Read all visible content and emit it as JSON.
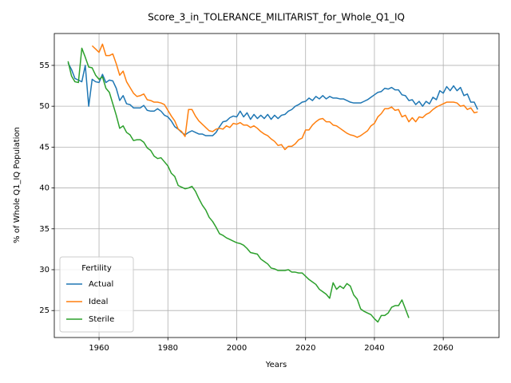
{
  "chart_data": {
    "type": "line",
    "title": "Score_3_in_TOLERANCE_MILITARIST_for_Whole_Q1_IQ",
    "x_label": "Years",
    "y_label": "% of Whole Q1_IQ Population",
    "legend_title": "Fertility",
    "legend_position": "lower left",
    "grid": true,
    "xlim": [
      1947.0,
      2076.2
    ],
    "ylim": [
      21.7,
      58.9
    ],
    "xticks": [
      1960,
      1980,
      2000,
      2020,
      2040,
      2060
    ],
    "yticks": [
      25,
      30,
      35,
      40,
      45,
      50,
      55
    ],
    "x": [
      1951,
      1952,
      1953,
      1954,
      1955,
      1956,
      1957,
      1958,
      1959,
      1960,
      1961,
      1962,
      1963,
      1964,
      1965,
      1966,
      1967,
      1968,
      1969,
      1970,
      1971,
      1972,
      1973,
      1974,
      1975,
      1976,
      1977,
      1978,
      1979,
      1980,
      1981,
      1982,
      1983,
      1984,
      1985,
      1986,
      1987,
      1988,
      1989,
      1990,
      1991,
      1992,
      1993,
      1994,
      1995,
      1996,
      1997,
      1998,
      1999,
      2000,
      2001,
      2002,
      2003,
      2004,
      2005,
      2006,
      2007,
      2008,
      2009,
      2010,
      2011,
      2012,
      2013,
      2014,
      2015,
      2016,
      2017,
      2018,
      2019,
      2020,
      2021,
      2022,
      2023,
      2024,
      2025,
      2026,
      2027,
      2028,
      2029,
      2030,
      2031,
      2032,
      2033,
      2034,
      2035,
      2036,
      2037,
      2038,
      2039,
      2040,
      2041,
      2042,
      2043,
      2044,
      2045,
      2046,
      2047,
      2048,
      2049,
      2050,
      2051,
      2052,
      2053,
      2054,
      2055,
      2056,
      2057,
      2058,
      2059,
      2060,
      2061,
      2062,
      2063,
      2064,
      2065,
      2066,
      2067,
      2068,
      2069,
      2070
    ],
    "series": [
      {
        "name": "Actual",
        "color": "#1f77b4",
        "values": [
          55.3,
          54.5,
          53.4,
          53.2,
          53.0,
          55.0,
          50.0,
          53.3,
          53.0,
          52.9,
          53.9,
          52.9,
          53.2,
          53.1,
          52.2,
          50.7,
          51.3,
          50.3,
          50.2,
          49.8,
          49.8,
          49.8,
          50.1,
          49.5,
          49.4,
          49.4,
          49.7,
          49.4,
          48.9,
          48.7,
          48.2,
          47.5,
          47.2,
          46.8,
          46.5,
          46.8,
          47.0,
          46.8,
          46.6,
          46.6,
          46.4,
          46.4,
          46.4,
          46.8,
          47.5,
          48.1,
          48.2,
          48.6,
          48.8,
          48.7,
          49.4,
          48.7,
          49.2,
          48.4,
          49.0,
          48.5,
          48.9,
          48.5,
          49.0,
          48.4,
          48.9,
          48.5,
          48.9,
          49.0,
          49.4,
          49.6,
          50.0,
          50.2,
          50.5,
          50.6,
          51.0,
          50.7,
          51.2,
          50.9,
          51.3,
          50.9,
          51.2,
          51.0,
          51.0,
          50.9,
          50.9,
          50.7,
          50.5,
          50.4,
          50.4,
          50.4,
          50.6,
          50.8,
          51.1,
          51.4,
          51.7,
          51.8,
          52.2,
          52.1,
          52.3,
          52.0,
          52.0,
          51.4,
          51.3,
          50.7,
          50.8,
          50.2,
          50.6,
          50.0,
          50.6,
          50.3,
          51.1,
          50.8,
          51.9,
          51.6,
          52.4,
          51.9,
          52.5,
          51.9,
          52.3,
          51.3,
          51.5,
          50.5,
          50.5,
          49.6
        ]
      },
      {
        "name": "Ideal",
        "color": "#ff7f0e",
        "values": [
          null,
          null,
          null,
          null,
          null,
          null,
          null,
          57.4,
          57.0,
          56.6,
          57.6,
          56.2,
          56.2,
          56.4,
          55.2,
          53.8,
          54.3,
          53.0,
          52.3,
          51.6,
          51.2,
          51.3,
          51.5,
          50.8,
          50.7,
          50.5,
          50.5,
          50.4,
          50.2,
          49.5,
          48.8,
          48.2,
          47.2,
          46.9,
          46.3,
          49.6,
          49.6,
          48.8,
          48.2,
          47.8,
          47.4,
          47.0,
          46.9,
          47.2,
          47.3,
          47.2,
          47.6,
          47.4,
          47.9,
          47.8,
          48.0,
          47.7,
          47.7,
          47.4,
          47.6,
          47.3,
          46.9,
          46.6,
          46.4,
          46.0,
          45.7,
          45.2,
          45.3,
          44.7,
          45.1,
          45.1,
          45.4,
          45.9,
          46.1,
          47.1,
          47.1,
          47.7,
          48.1,
          48.4,
          48.5,
          48.1,
          48.1,
          47.7,
          47.6,
          47.3,
          47.0,
          46.7,
          46.5,
          46.4,
          46.2,
          46.4,
          46.7,
          47.0,
          47.6,
          47.9,
          48.7,
          49.1,
          49.7,
          49.7,
          49.9,
          49.5,
          49.6,
          48.7,
          48.9,
          48.1,
          48.6,
          48.1,
          48.7,
          48.6,
          49.0,
          49.2,
          49.6,
          49.9,
          50.1,
          50.3,
          50.5,
          50.5,
          50.5,
          50.4,
          50.0,
          50.1,
          49.6,
          49.8,
          49.2,
          49.3
        ]
      },
      {
        "name": "Sterile",
        "color": "#2ca02c",
        "values": [
          55.5,
          53.7,
          53.0,
          52.9,
          57.1,
          56.0,
          54.8,
          54.7,
          53.8,
          53.3,
          53.6,
          52.2,
          51.7,
          50.3,
          48.9,
          47.3,
          47.6,
          46.8,
          46.5,
          45.8,
          45.9,
          45.9,
          45.6,
          44.9,
          44.6,
          43.9,
          43.6,
          43.7,
          43.2,
          42.7,
          41.8,
          41.4,
          40.3,
          40.1,
          39.9,
          40.0,
          40.2,
          39.6,
          38.7,
          37.9,
          37.3,
          36.4,
          35.9,
          35.2,
          34.4,
          34.2,
          33.9,
          33.7,
          33.5,
          33.3,
          33.2,
          33.0,
          32.6,
          32.1,
          32.0,
          31.9,
          31.3,
          31.0,
          30.7,
          30.2,
          30.1,
          29.9,
          29.9,
          29.9,
          30.0,
          29.7,
          29.7,
          29.6,
          29.6,
          29.2,
          28.8,
          28.5,
          28.2,
          27.6,
          27.3,
          27.0,
          26.5,
          28.4,
          27.6,
          28.0,
          27.7,
          28.3,
          28.0,
          26.9,
          26.4,
          25.2,
          24.9,
          24.7,
          24.5,
          24.0,
          23.6,
          24.4,
          24.4,
          24.7,
          25.4,
          25.6,
          25.6,
          26.3,
          25.2,
          24.1,
          null,
          null,
          null,
          null,
          null,
          null,
          null,
          null,
          null,
          null,
          null,
          null,
          null,
          null,
          null,
          null,
          null,
          null,
          null,
          null
        ]
      }
    ]
  }
}
